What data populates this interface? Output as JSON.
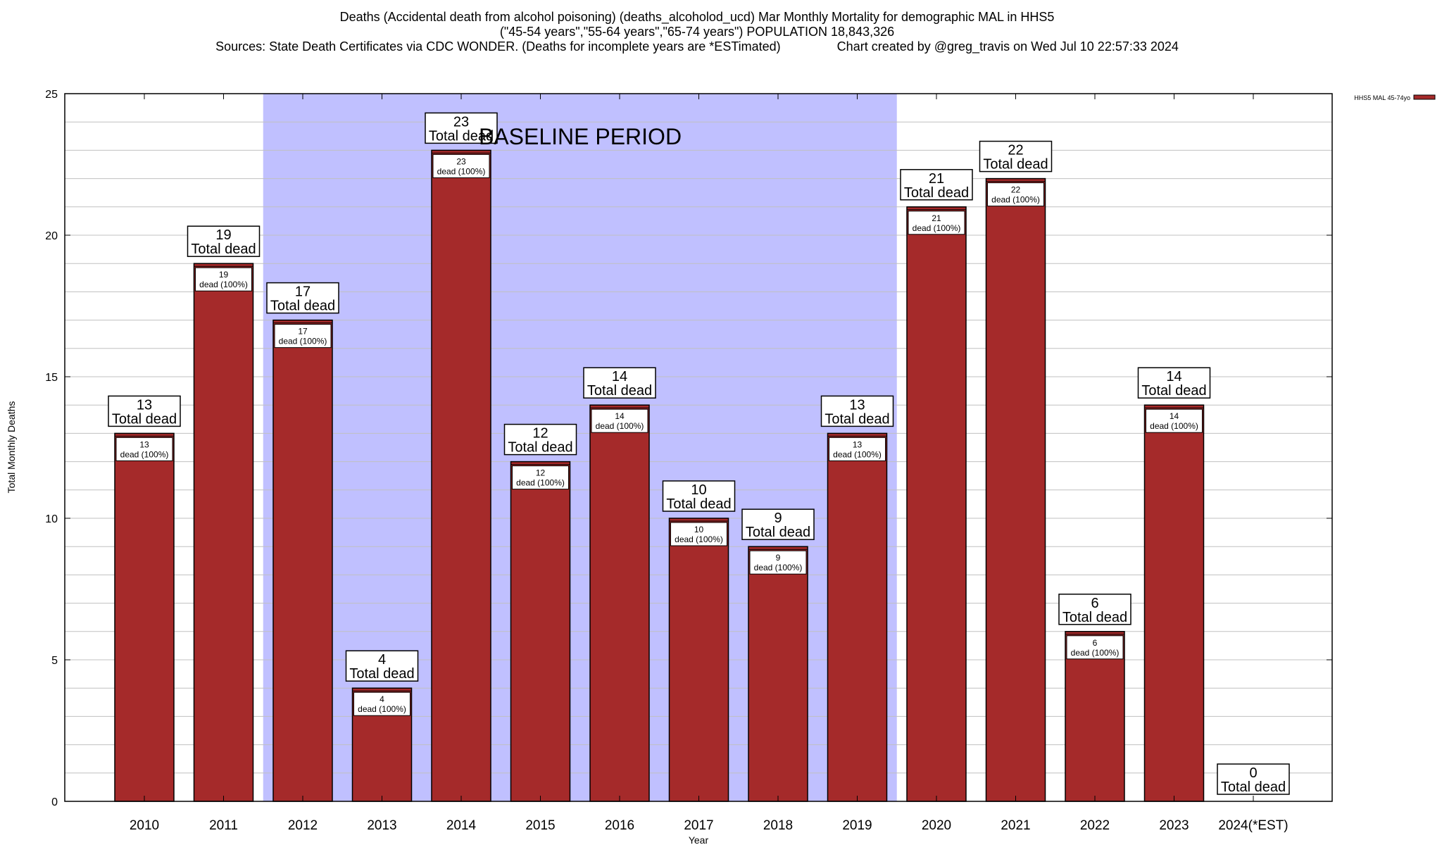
{
  "chart_data": {
    "type": "bar",
    "title_lines": [
      "Deaths (Accidental death from alcohol poisoning) (deaths_alcoholod_ucd) Mar Monthly Mortality for demographic MAL in HHS5",
      "(\"45-54 years\",\"55-64 years\",\"65-74 years\") POPULATION 18,843,326",
      "Sources: State Death Certificates via CDC WONDER. (Deaths for incomplete years are *ESTimated)                Chart created by @greg_travis on Wed Jul 10 22:57:33 2024"
    ],
    "xlabel": "Year",
    "ylabel": "Total Monthly Deaths",
    "ylim": [
      0,
      25
    ],
    "yticks": [
      0,
      5,
      10,
      15,
      20,
      25
    ],
    "grid": true,
    "legend": {
      "placement": "top-right outside",
      "entries": [
        "HHS5 MAL 45-74yo"
      ]
    },
    "baseline": {
      "label": "BASELINE PERIOD",
      "from": "2012",
      "to": "2019"
    },
    "categories": [
      "2010",
      "2011",
      "2012",
      "2013",
      "2014",
      "2015",
      "2016",
      "2017",
      "2018",
      "2019",
      "2020",
      "2021",
      "2022",
      "2023",
      "2024(*EST)"
    ],
    "series": [
      {
        "name": "HHS5 MAL 45-74yo",
        "values": [
          13,
          19,
          17,
          4,
          23,
          12,
          14,
          10,
          9,
          13,
          21,
          22,
          6,
          14,
          0
        ]
      }
    ],
    "total_label": "Total dead",
    "inner_label": "dead (100%)",
    "colors": {
      "bar": "#a52a2a",
      "baseline": "#c0c0ff",
      "grid": "#c0c0c0"
    }
  }
}
